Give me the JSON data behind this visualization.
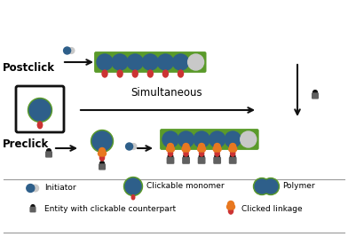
{
  "title": "",
  "background_color": "#ffffff",
  "postclick_label": "Postclick",
  "preclick_label": "Preclick",
  "simultaneous_label": "Simultaneous",
  "legend_items": [
    {
      "label": "Initiator",
      "type": "initiator"
    },
    {
      "label": "Clickable monomer",
      "type": "clickable_monomer"
    },
    {
      "label": "Polymer",
      "type": "polymer"
    },
    {
      "label": "Entity with clickable counterpart",
      "type": "entity"
    },
    {
      "label": "Clicked linkage",
      "type": "clicked_linkage"
    }
  ],
  "colors": {
    "blue_dark": "#2e5f8a",
    "blue_light": "#aac4dd",
    "gray_light": "#c8c8c8",
    "gray_dark": "#606060",
    "red": "#cc3333",
    "green_outline": "#5a9a2a",
    "orange": "#e87820",
    "black": "#111111",
    "white": "#ffffff"
  }
}
